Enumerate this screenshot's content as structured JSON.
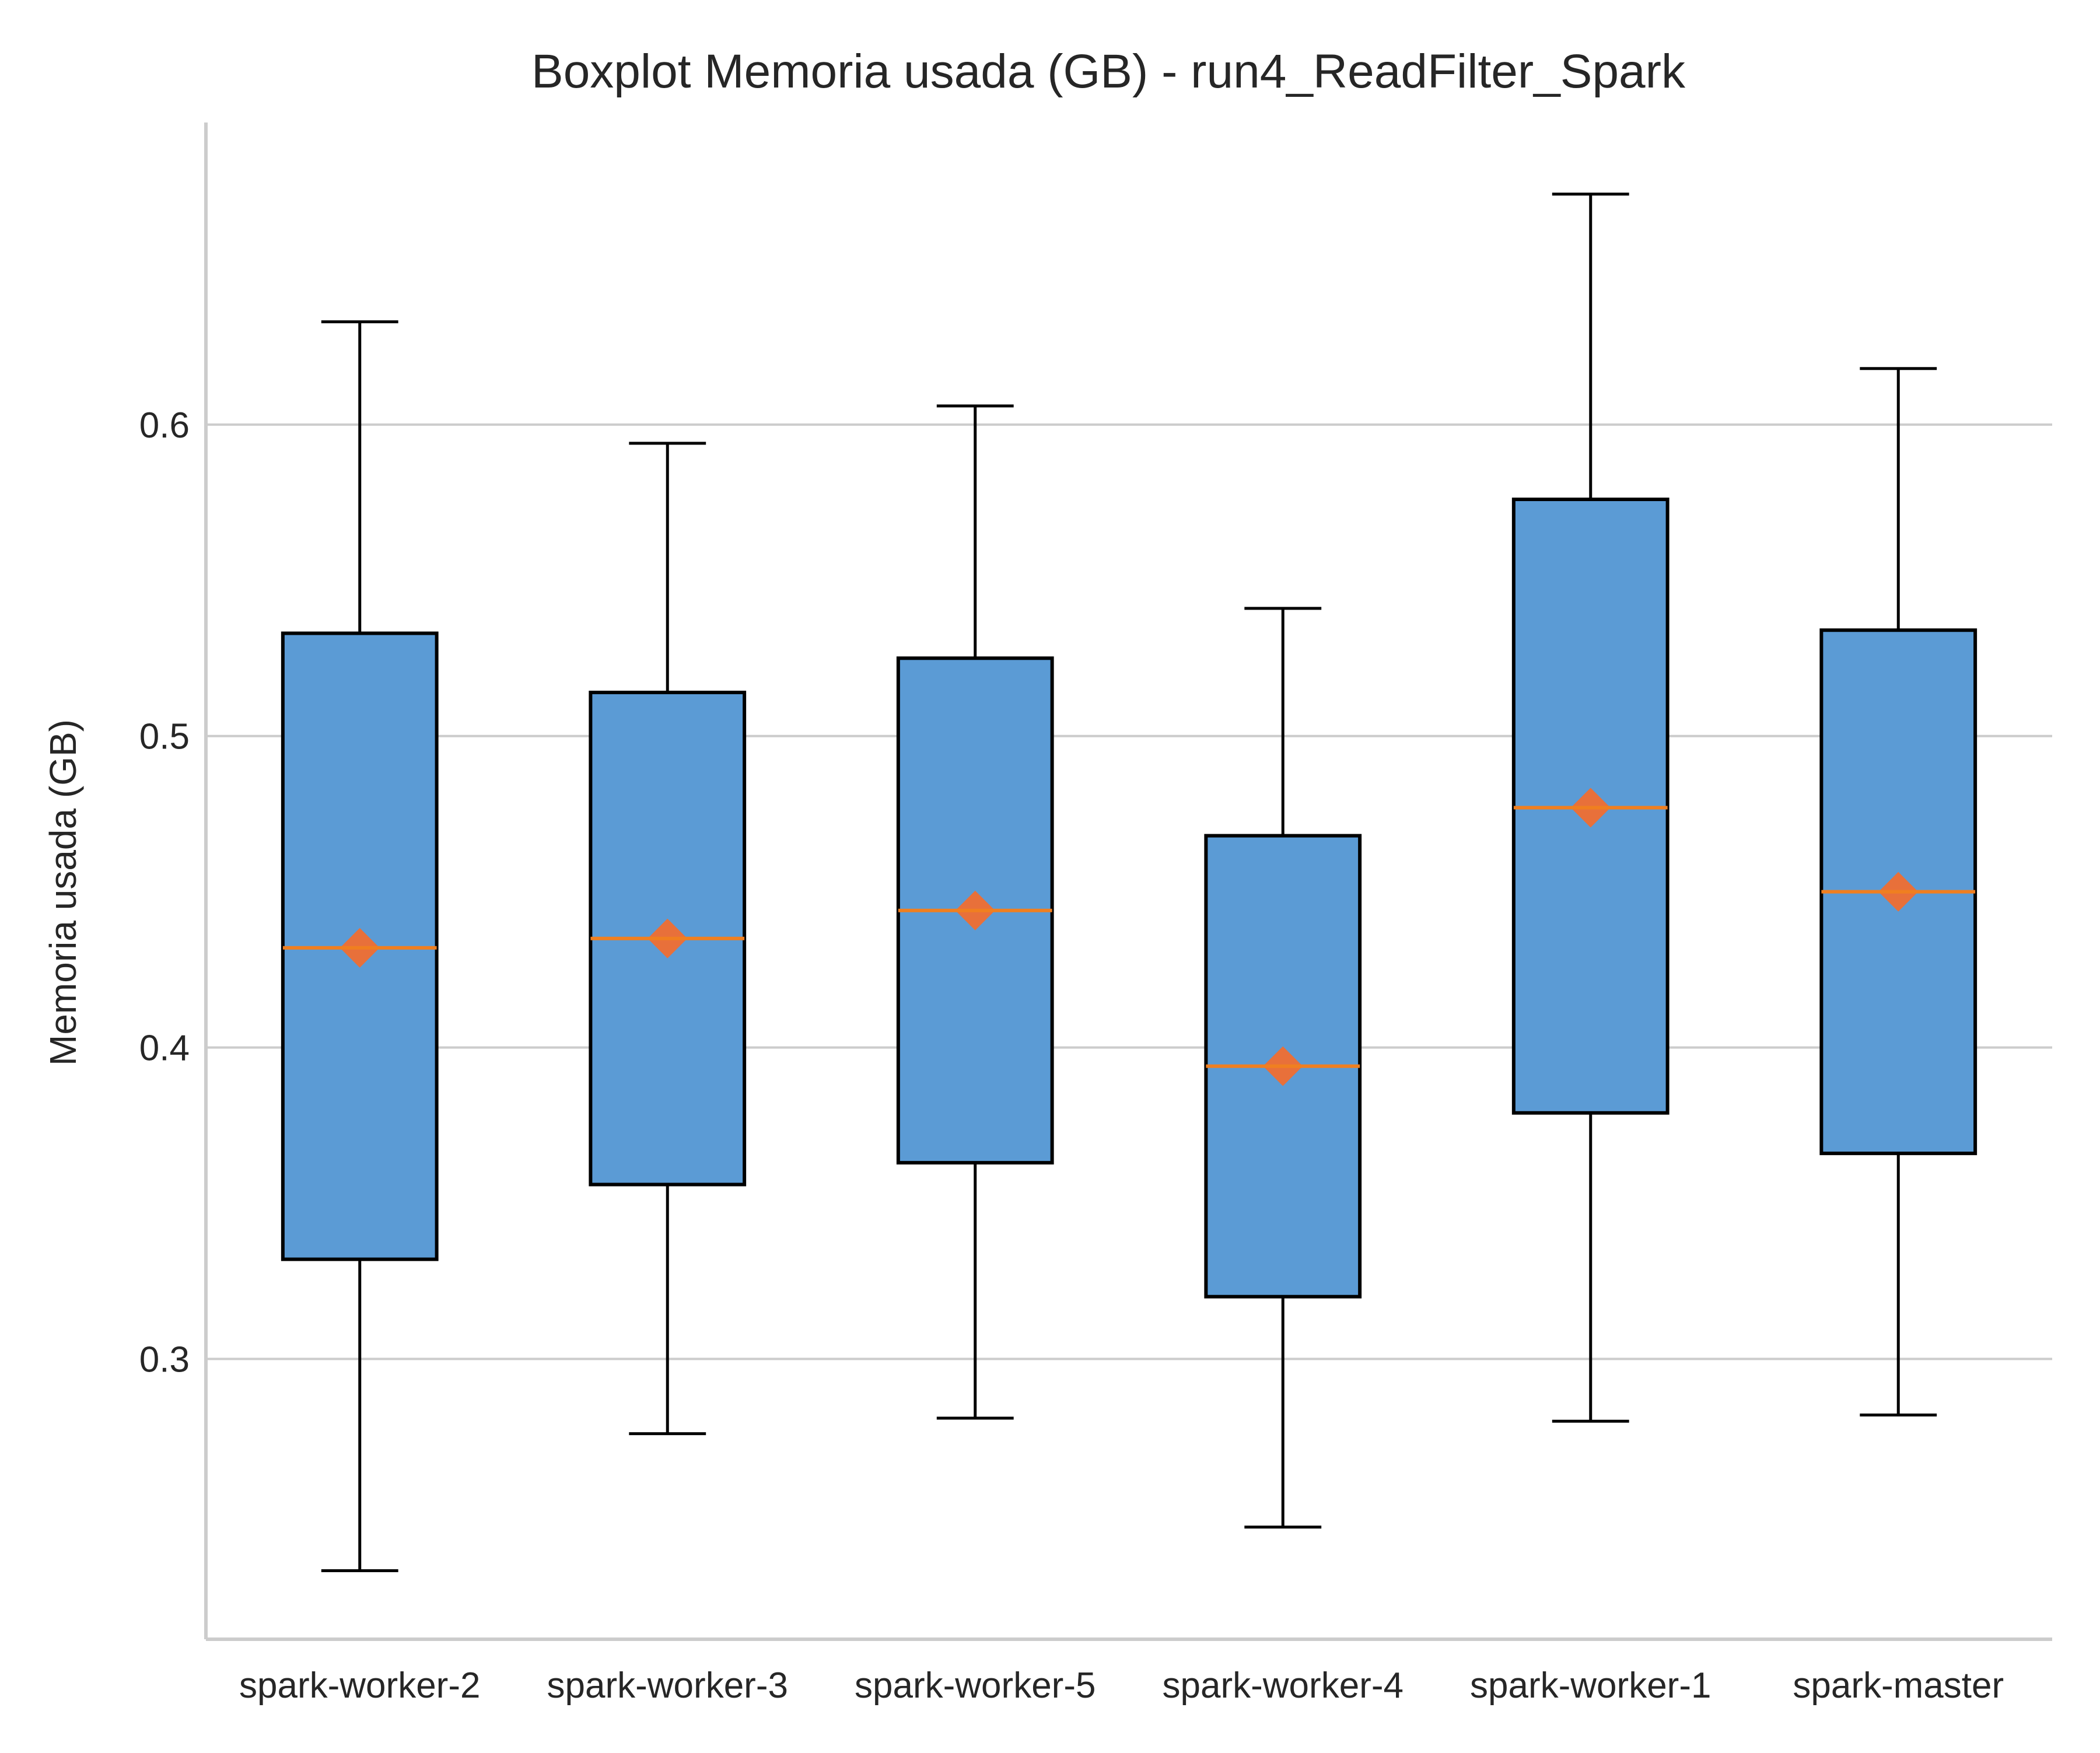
{
  "chart_data": {
    "type": "boxplot",
    "title": "Boxplot Memoria usada (GB) - run4_ReadFilter_Spark",
    "xlabel": "",
    "ylabel": "Memoria usada (GB)",
    "categories": [
      "spark-worker-2",
      "spark-worker-3",
      "spark-worker-5",
      "spark-worker-4",
      "spark-worker-1",
      "spark-master"
    ],
    "boxes": [
      {
        "whisker_low": 0.232,
        "q1": 0.332,
        "median": 0.432,
        "q3": 0.533,
        "whisker_high": 0.633,
        "mean": 0.432
      },
      {
        "whisker_low": 0.276,
        "q1": 0.356,
        "median": 0.435,
        "q3": 0.514,
        "whisker_high": 0.594,
        "mean": 0.435
      },
      {
        "whisker_low": 0.281,
        "q1": 0.363,
        "median": 0.444,
        "q3": 0.525,
        "whisker_high": 0.606,
        "mean": 0.444
      },
      {
        "whisker_low": 0.246,
        "q1": 0.32,
        "median": 0.394,
        "q3": 0.468,
        "whisker_high": 0.541,
        "mean": 0.394
      },
      {
        "whisker_low": 0.28,
        "q1": 0.379,
        "median": 0.477,
        "q3": 0.576,
        "whisker_high": 0.674,
        "mean": 0.477
      },
      {
        "whisker_low": 0.282,
        "q1": 0.366,
        "median": 0.45,
        "q3": 0.534,
        "whisker_high": 0.618,
        "mean": 0.45
      }
    ],
    "yticks": [
      0.3,
      0.4,
      0.5,
      0.6
    ],
    "ytick_labels": [
      "0.3",
      "0.4",
      "0.5",
      "0.6"
    ],
    "ylim": [
      0.21,
      0.697
    ],
    "grid": "horizontal",
    "colors": {
      "box_fill": "#5b9bd5",
      "box_edge": "#000000",
      "median": "#f07f20",
      "mean_marker": "#e8703a",
      "grid": "#cccccc",
      "axis": "#cccccc"
    }
  }
}
